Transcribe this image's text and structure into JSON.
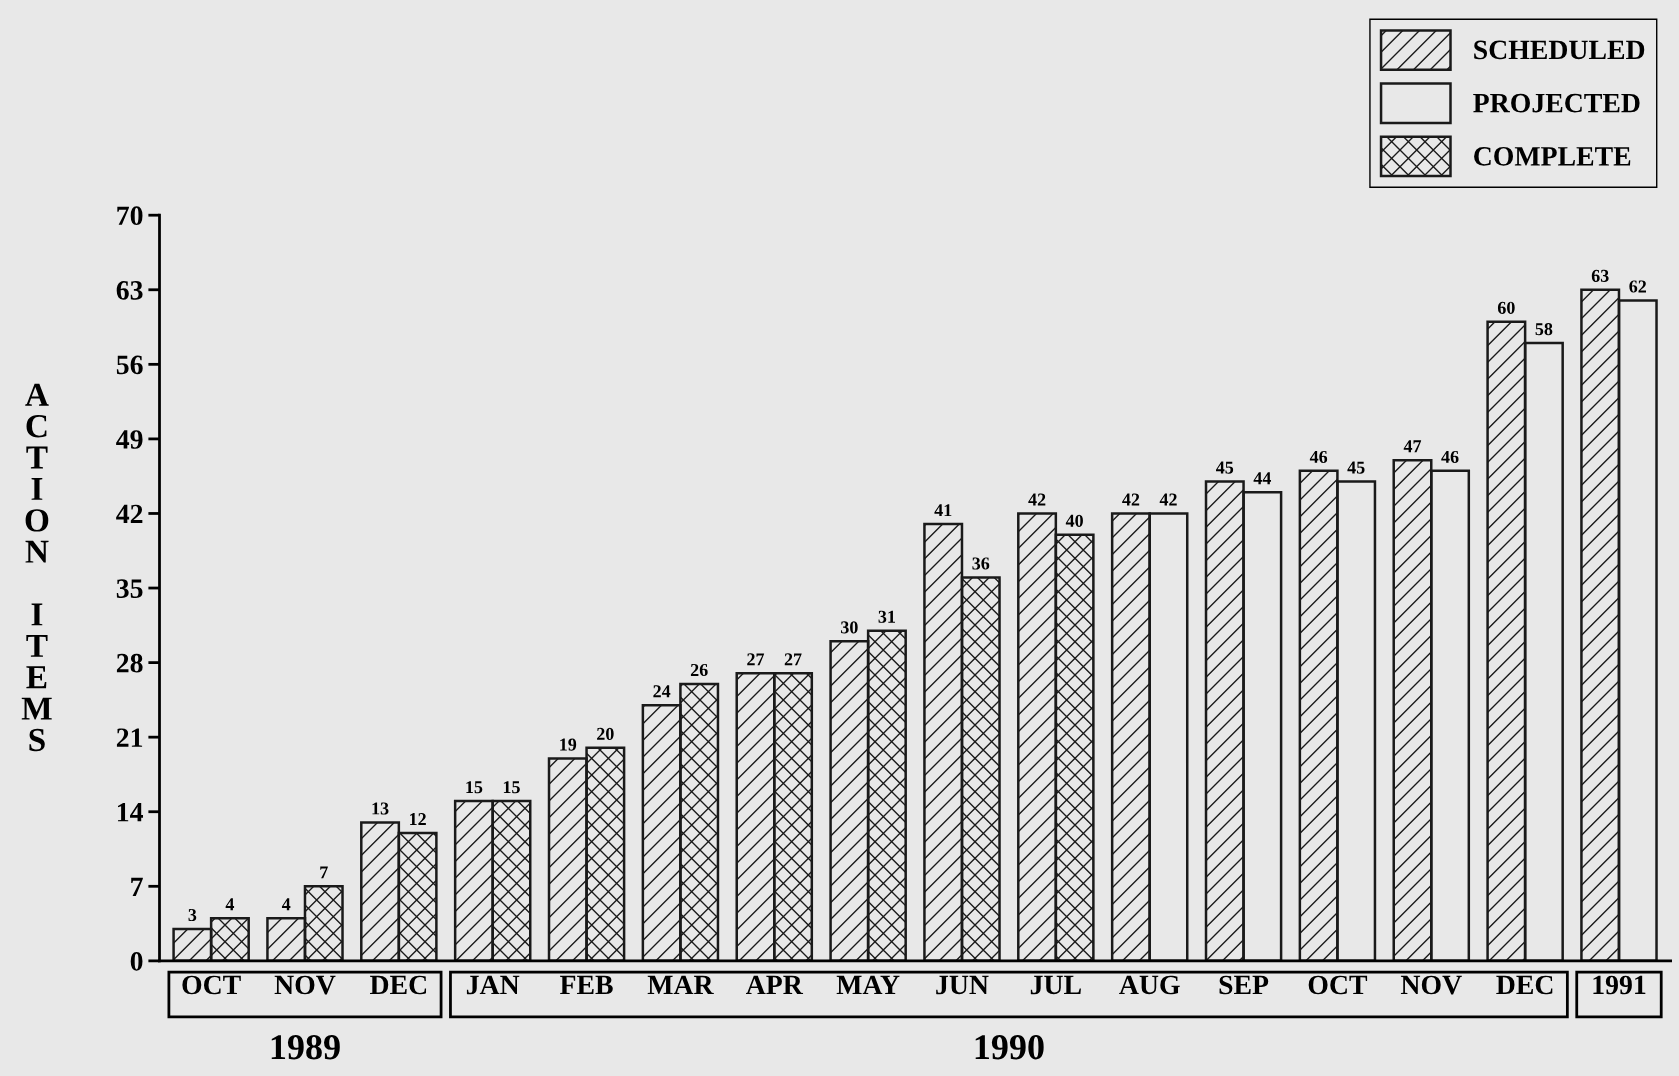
{
  "chart_data": {
    "type": "bar",
    "ylabel": "ACTION ITEMS",
    "categories": [
      "OCT",
      "NOV",
      "DEC",
      "JAN",
      "FEB",
      "MAR",
      "APR",
      "MAY",
      "JUN",
      "JUL",
      "AUG",
      "SEP",
      "OCT",
      "NOV",
      "DEC",
      "1991"
    ],
    "series": [
      {
        "name": "SCHEDULED",
        "color": "#1a1a1a",
        "values": [
          3,
          4,
          13,
          15,
          19,
          24,
          27,
          30,
          41,
          42,
          42,
          45,
          46,
          47,
          60,
          63
        ]
      },
      {
        "name": "PROJECTED",
        "color": "#1a1a1a",
        "values": [
          null,
          null,
          null,
          null,
          null,
          null,
          null,
          null,
          null,
          null,
          42,
          44,
          45,
          46,
          58,
          62
        ]
      },
      {
        "name": "COMPLETE",
        "color": "#1a1a1a",
        "values": [
          4,
          7,
          12,
          15,
          20,
          26,
          27,
          31,
          36,
          40,
          null,
          null,
          null,
          null,
          null,
          null
        ]
      }
    ],
    "ylim": [
      0,
      70
    ],
    "yticks": [
      0,
      7,
      14,
      21,
      28,
      35,
      42,
      49,
      56,
      63,
      70
    ],
    "data_labels": true,
    "legend": "top right",
    "grid": false,
    "annotations": [
      "1989",
      "1990"
    ]
  }
}
